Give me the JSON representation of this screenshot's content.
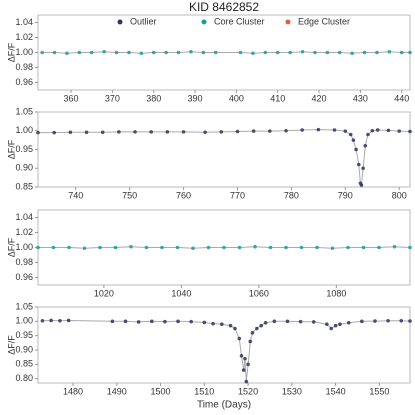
{
  "chart_data": [
    {
      "type": "scatter",
      "title": "KID 8462852",
      "ylabel": "ΔF/F",
      "legend": [
        {
          "name": "Outlier",
          "color": "#2e3560"
        },
        {
          "name": "Core Cluster",
          "color": "#1f9a9a"
        },
        {
          "name": "Edge Cluster",
          "color": "#e0603a"
        }
      ],
      "xlim": [
        352,
        442
      ],
      "xticks": [
        360,
        370,
        380,
        390,
        400,
        410,
        420,
        430,
        440
      ],
      "ylim": [
        0.95,
        1.05
      ],
      "yticks": [
        0.96,
        0.98,
        {
          "value": 1.0,
          "label": "1.00"
        },
        1.02,
        1.04
      ],
      "x": [
        353,
        356,
        359,
        362,
        365,
        368,
        371,
        374,
        377,
        380,
        383,
        386,
        389,
        392,
        395,
        401,
        404,
        407,
        410,
        413,
        416,
        419,
        422,
        425,
        428,
        431,
        434,
        437,
        440,
        442
      ],
      "series": [
        {
          "color": "#1f9a9a",
          "values": [
            1.0,
            1.0,
            0.999,
            1.0,
            1.0,
            1.001,
            1.0,
            1.0,
            0.999,
            1.0,
            1.0,
            1.0,
            1.001,
            1.0,
            1.0,
            1.0,
            0.999,
            1.0,
            1.0,
            1.0,
            1.001,
            1.0,
            1.0,
            1.0,
            0.999,
            1.0,
            1.0,
            1.001,
            1.0,
            1.0
          ]
        }
      ]
    },
    {
      "type": "scatter",
      "ylabel": "ΔF/F",
      "xlim": [
        733,
        802
      ],
      "xticks": [
        740,
        750,
        760,
        770,
        780,
        790,
        800
      ],
      "ylim": [
        0.85,
        1.05
      ],
      "yticks": [
        0.85,
        {
          "value": 0.9,
          "label": "0.90"
        },
        0.95,
        {
          "value": 1.0,
          "label": "1.00"
        },
        1.05
      ],
      "x": [
        733,
        736,
        739,
        742,
        745,
        748,
        751,
        754,
        757,
        760,
        764,
        767,
        770,
        773,
        776,
        779,
        782,
        785,
        788,
        790,
        791,
        791.5,
        792,
        792.5,
        792.8,
        793,
        793.3,
        793.7,
        794.2,
        795,
        796,
        798,
        800,
        802
      ],
      "series": [
        {
          "color": "#2e3560",
          "values": [
            0.995,
            0.995,
            0.996,
            0.996,
            0.996,
            0.997,
            0.997,
            0.997,
            0.997,
            0.997,
            0.996,
            0.997,
            0.998,
            0.999,
            0.999,
            1.0,
            1.002,
            1.003,
            1.002,
            0.999,
            0.99,
            0.975,
            0.95,
            0.91,
            0.86,
            0.855,
            0.9,
            0.96,
            0.99,
            1.0,
            1.002,
            1.001,
            0.999,
            0.998
          ]
        }
      ]
    },
    {
      "type": "scatter",
      "ylabel": "ΔF/F",
      "xlim": [
        1003,
        1099
      ],
      "xticks": [
        1020,
        1040,
        1060,
        1080
      ],
      "ylim": [
        0.95,
        1.05
      ],
      "yticks": [
        0.96,
        0.98,
        {
          "value": 1.0,
          "label": "1.00"
        },
        1.02,
        1.04
      ],
      "x": [
        1003,
        1007,
        1011,
        1015,
        1019,
        1023,
        1027,
        1031,
        1035,
        1039,
        1043,
        1047,
        1051,
        1055,
        1059,
        1063,
        1067,
        1071,
        1075,
        1079,
        1083,
        1087,
        1091,
        1095,
        1099
      ],
      "series": [
        {
          "color": "#1f9a9a",
          "values": [
            1.0,
            1.0,
            1.0,
            0.999,
            1.0,
            1.0,
            1.001,
            1.0,
            1.0,
            1.0,
            0.999,
            1.0,
            1.0,
            1.0,
            1.001,
            1.0,
            1.0,
            1.0,
            1.0,
            0.999,
            1.0,
            1.0,
            1.0,
            1.001,
            1.0
          ]
        }
      ]
    },
    {
      "type": "scatter",
      "ylabel": "ΔF/F",
      "xlabel": "Time (Days)",
      "xlim": [
        1472,
        1557
      ],
      "xticks": [
        1480,
        1490,
        1500,
        1510,
        1520,
        1530,
        1540,
        1550
      ],
      "ylim": [
        0.785,
        1.05
      ],
      "yticks": [
        {
          "value": 0.8,
          "label": "0.80"
        },
        0.85,
        {
          "value": 0.9,
          "label": "0.90"
        },
        0.95,
        {
          "value": 1.0,
          "label": "1.00"
        },
        1.05
      ],
      "x": [
        1473,
        1475,
        1477,
        1479,
        1489,
        1492,
        1495,
        1498,
        1501,
        1504,
        1507,
        1510,
        1512,
        1514,
        1516,
        1517,
        1518,
        1518.5,
        1519,
        1519.3,
        1519.6,
        1520,
        1520.5,
        1521,
        1522,
        1523,
        1524,
        1526,
        1529,
        1532,
        1535,
        1538,
        1539,
        1540,
        1541,
        1543,
        1546,
        1549,
        1552,
        1555,
        1557
      ],
      "series": [
        {
          "color": "#2e3560",
          "values": [
            1.002,
            1.003,
            1.002,
            1.003,
            1.0,
            1.0,
            0.998,
            1.0,
            0.999,
            1.0,
            0.999,
            0.996,
            0.992,
            0.99,
            0.985,
            0.975,
            0.94,
            0.88,
            0.83,
            0.87,
            0.79,
            0.85,
            0.93,
            0.96,
            0.975,
            0.985,
            0.995,
            1.0,
            1.0,
            0.999,
            0.998,
            0.99,
            0.975,
            0.985,
            0.99,
            0.995,
            1.0,
            1.001,
            1.002,
            1.002,
            1.001
          ]
        }
      ]
    }
  ]
}
